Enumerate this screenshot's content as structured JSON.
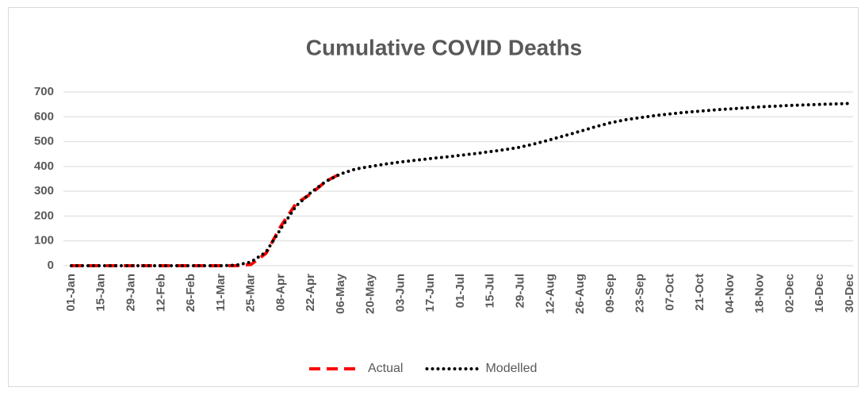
{
  "chart_data": {
    "type": "line",
    "title": "Cumulative COVID Deaths",
    "categories": [
      "01-Jan",
      null,
      "15-Jan",
      null,
      "29-Jan",
      null,
      "12-Feb",
      null,
      "26-Feb",
      null,
      "11-Mar",
      null,
      "25-Mar",
      null,
      "08-Apr",
      null,
      "22-Apr",
      null,
      "06-May",
      null,
      "20-May",
      null,
      "03-Jun",
      null,
      "17-Jun",
      null,
      "01-Jul",
      null,
      "15-Jul",
      null,
      "29-Jul",
      null,
      "12-Aug",
      null,
      "26-Aug",
      null,
      "09-Sep",
      null,
      "23-Sep",
      null,
      "07-Oct",
      null,
      "21-Oct",
      null,
      "04-Nov",
      null,
      "18-Nov",
      null,
      "02-Dec",
      null,
      "16-Dec",
      null,
      "30-Dec"
    ],
    "series": [
      {
        "name": "Actual",
        "color": "#ff0000",
        "dash": "dashed",
        "values": [
          0,
          0,
          0,
          0,
          0,
          0,
          0,
          0,
          0,
          0,
          0,
          0,
          5,
          50,
          160,
          250,
          290,
          340,
          372,
          null,
          null,
          null,
          null,
          null,
          null,
          null,
          null,
          null,
          null,
          null,
          null,
          null,
          null,
          null,
          null,
          null,
          null,
          null,
          null,
          null,
          null,
          null,
          null,
          null,
          null,
          null,
          null,
          null,
          null,
          null,
          null,
          null,
          null
        ]
      },
      {
        "name": "Modelled",
        "color": "#000000",
        "dash": "dotted",
        "values": [
          0,
          0,
          0,
          0,
          0,
          0,
          0,
          0,
          0,
          0,
          0,
          2,
          15,
          55,
          150,
          240,
          295,
          340,
          370,
          390,
          400,
          410,
          418,
          425,
          432,
          438,
          445,
          452,
          460,
          468,
          478,
          492,
          508,
          525,
          542,
          560,
          576,
          588,
          597,
          605,
          612,
          618,
          623,
          628,
          632,
          636,
          640,
          643,
          646,
          648,
          650,
          652,
          654
        ]
      }
    ],
    "ylim": [
      0,
      700
    ],
    "yticks": [
      0,
      100,
      200,
      300,
      400,
      500,
      600,
      700
    ],
    "grid": true,
    "legend": "bottom"
  }
}
